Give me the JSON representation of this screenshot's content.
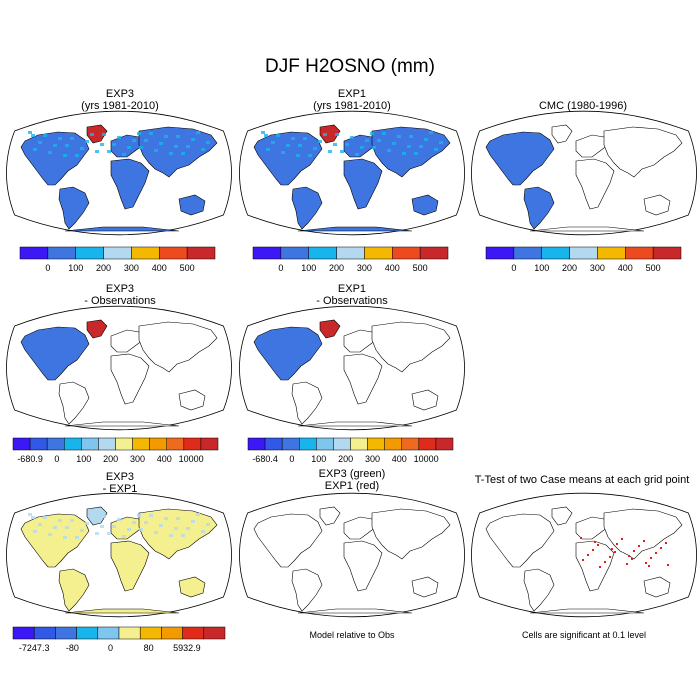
{
  "figure_title": "DJF H2OSNO (mm)",
  "panels": [
    {
      "id": "exp3",
      "title": [
        "EXP3",
        "(yrs 1981-2010)"
      ],
      "fill": "full",
      "base": "#3f75e0"
    },
    {
      "id": "exp1",
      "title": [
        "EXP1",
        "(yrs 1981-2010)"
      ],
      "fill": "full",
      "base": "#3f75e0"
    },
    {
      "id": "cmc",
      "title": [
        "CMC (1980-1996)",
        ""
      ],
      "fill": "americas",
      "base": "#3f75e0"
    },
    {
      "id": "exp3-obs",
      "title": [
        "EXP3",
        "- Observations"
      ],
      "fill": "na",
      "base": "#3f75e0"
    },
    {
      "id": "exp1-obs",
      "title": [
        "EXP1",
        "- Observations"
      ],
      "fill": "na",
      "base": "#3f75e0"
    },
    {
      "id": "exp3-exp1",
      "title": [
        "EXP3",
        "- EXP1"
      ],
      "fill": "full",
      "base": "#f5f08f"
    },
    {
      "id": "green-red",
      "title": [
        "EXP3 (green)",
        "EXP1 (red)"
      ],
      "fill": "none",
      "base": "#ffffff"
    },
    {
      "id": "ttest",
      "title": [
        "T-Test of two Case means at each grid point",
        ""
      ],
      "fill": "dots",
      "base": "#ffffff"
    }
  ],
  "colorbars": {
    "top": {
      "colors": [
        "#3b18f5",
        "#3f75e0",
        "#18b4ec",
        "#b3d9f0",
        "#f5b800",
        "#ee4a1f",
        "#c8282a"
      ],
      "labels": [
        "0",
        "100",
        "200",
        "300",
        "400",
        "500"
      ]
    },
    "middle_left": {
      "colors": [
        "#3b18f5",
        "#3158e6",
        "#3f75e0",
        "#18b4ec",
        "#7ec6ee",
        "#b3d9f0",
        "#f5f08f",
        "#f5b800",
        "#f39a00",
        "#ee6a1f",
        "#e02a1a",
        "#c8282a"
      ],
      "labels": [
        "-680.9",
        "0",
        "100",
        "200",
        "300",
        "400",
        "10000"
      ]
    },
    "middle_right": {
      "colors": [
        "#3b18f5",
        "#3158e6",
        "#3f75e0",
        "#18b4ec",
        "#7ec6ee",
        "#b3d9f0",
        "#f5f08f",
        "#f5b800",
        "#f39a00",
        "#ee6a1f",
        "#e02a1a",
        "#c8282a"
      ],
      "labels": [
        "-680.4",
        "0",
        "100",
        "200",
        "300",
        "400",
        "10000"
      ]
    },
    "bottom": {
      "colors": [
        "#3b18f5",
        "#3158e6",
        "#3f75e0",
        "#18b4ec",
        "#7ec6ee",
        "#f5f08f",
        "#f5b800",
        "#f39a00",
        "#e02a1a",
        "#c8282a"
      ],
      "labels": [
        "-7247.3",
        "-80",
        "0",
        "80",
        "5932.9"
      ]
    }
  },
  "notes": {
    "model_relative": "Model relative to Obs",
    "significance": "Cells are significant at 0.1 level"
  }
}
